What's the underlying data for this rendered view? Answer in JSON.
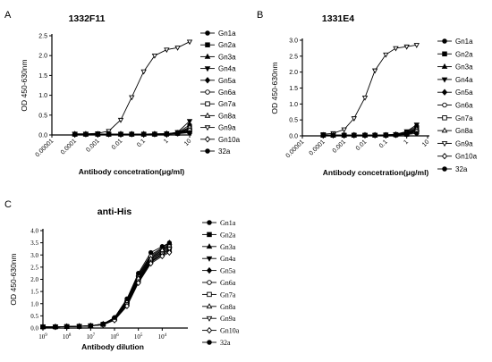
{
  "chart_data": [
    {
      "panel": "A",
      "type": "line",
      "title": "1332F11",
      "xlabel": "Antibody concetration(μg/ml)",
      "ylabel": "OD 450-630nm",
      "x_scale": "log",
      "xlim": [
        1e-05,
        10
      ],
      "x_ticks": [
        "0.00001",
        "0.0001",
        "0.001",
        "0.01",
        "0.1",
        "1",
        "10"
      ],
      "ylim": [
        0,
        2.5
      ],
      "y_ticks": [
        "0.0",
        "0.5",
        "1.0",
        "1.5",
        "2.0",
        "2.5"
      ],
      "legend_position": "right",
      "x": [
        0.0001,
        0.0003,
        0.001,
        0.003,
        0.01,
        0.03,
        0.1,
        0.3,
        1,
        3,
        10
      ],
      "series": [
        {
          "name": "Gn1a",
          "marker": "circle",
          "values": [
            0.02,
            0.02,
            0.02,
            0.02,
            0.02,
            0.02,
            0.02,
            0.03,
            0.03,
            0.06,
            0.25
          ]
        },
        {
          "name": "Gn2a",
          "marker": "square",
          "values": [
            0.02,
            0.02,
            0.02,
            0.02,
            0.02,
            0.02,
            0.02,
            0.02,
            0.03,
            0.05,
            0.18
          ]
        },
        {
          "name": "Gn3a",
          "marker": "triangle-up",
          "values": [
            0.02,
            0.02,
            0.02,
            0.02,
            0.02,
            0.02,
            0.02,
            0.02,
            0.03,
            0.05,
            0.12
          ]
        },
        {
          "name": "Gn4a",
          "marker": "triangle-down",
          "values": [
            0.02,
            0.02,
            0.02,
            0.02,
            0.02,
            0.02,
            0.02,
            0.03,
            0.03,
            0.07,
            0.35
          ]
        },
        {
          "name": "Gn5a",
          "marker": "diamond",
          "values": [
            0.02,
            0.02,
            0.02,
            0.02,
            0.02,
            0.02,
            0.02,
            0.02,
            0.02,
            0.04,
            0.1
          ]
        },
        {
          "name": "Gn6a",
          "marker": "circle-open",
          "values": [
            0.02,
            0.02,
            0.02,
            0.02,
            0.02,
            0.02,
            0.02,
            0.02,
            0.03,
            0.05,
            0.15
          ]
        },
        {
          "name": "Gn7a",
          "marker": "square-open",
          "values": [
            0.02,
            0.02,
            0.02,
            0.02,
            0.02,
            0.02,
            0.02,
            0.02,
            0.02,
            0.04,
            0.08
          ]
        },
        {
          "name": "Gn8a",
          "marker": "triangle-up-open",
          "values": [
            0.02,
            0.02,
            0.02,
            0.02,
            0.02,
            0.02,
            0.02,
            0.02,
            0.03,
            0.05,
            0.2
          ]
        },
        {
          "name": "Gn9a",
          "marker": "triangle-down-open",
          "values": [
            0.03,
            0.03,
            0.04,
            0.1,
            0.38,
            0.95,
            1.6,
            2.0,
            2.15,
            2.2,
            2.35
          ]
        },
        {
          "name": "Gn10a",
          "marker": "diamond-open",
          "values": [
            0.02,
            0.02,
            0.02,
            0.02,
            0.02,
            0.02,
            0.02,
            0.02,
            0.03,
            0.04,
            0.12
          ]
        },
        {
          "name": "32a",
          "marker": "circle",
          "values": [
            0.02,
            0.02,
            0.02,
            0.02,
            0.02,
            0.02,
            0.02,
            0.02,
            0.02,
            0.03,
            0.06
          ]
        }
      ]
    },
    {
      "panel": "B",
      "type": "line",
      "title": "1331E4",
      "xlabel": "Antibody concetration(μg/ml)",
      "ylabel": "OD 450-630nm",
      "x_scale": "log",
      "xlim": [
        1e-05,
        10
      ],
      "x_ticks": [
        "0.00001",
        "0.0001",
        "0.001",
        "0.01",
        "0.1",
        "1",
        "10"
      ],
      "ylim": [
        0,
        3.0
      ],
      "y_ticks": [
        "0.0",
        "0.5",
        "1.0",
        "1.5",
        "2.0",
        "2.5",
        "3.0"
      ],
      "legend_position": "right",
      "x": [
        0.0001,
        0.0003,
        0.001,
        0.003,
        0.01,
        0.03,
        0.1,
        0.3,
        1,
        3
      ],
      "series": [
        {
          "name": "Gn1a",
          "marker": "circle",
          "values": [
            0.02,
            0.02,
            0.02,
            0.02,
            0.02,
            0.02,
            0.03,
            0.05,
            0.12,
            0.3
          ]
        },
        {
          "name": "Gn2a",
          "marker": "square",
          "values": [
            0.02,
            0.02,
            0.02,
            0.02,
            0.02,
            0.02,
            0.03,
            0.04,
            0.1,
            0.25
          ]
        },
        {
          "name": "Gn3a",
          "marker": "triangle-up",
          "values": [
            0.02,
            0.02,
            0.02,
            0.02,
            0.02,
            0.02,
            0.02,
            0.04,
            0.08,
            0.2
          ]
        },
        {
          "name": "Gn4a",
          "marker": "triangle-down",
          "values": [
            0.02,
            0.02,
            0.02,
            0.02,
            0.02,
            0.02,
            0.03,
            0.05,
            0.14,
            0.35
          ]
        },
        {
          "name": "Gn5a",
          "marker": "diamond",
          "values": [
            0.02,
            0.02,
            0.02,
            0.02,
            0.02,
            0.02,
            0.02,
            0.03,
            0.06,
            0.15
          ]
        },
        {
          "name": "Gn6a",
          "marker": "circle-open",
          "values": [
            0.02,
            0.02,
            0.02,
            0.02,
            0.02,
            0.02,
            0.02,
            0.03,
            0.07,
            0.18
          ]
        },
        {
          "name": "Gn7a",
          "marker": "square-open",
          "values": [
            0.02,
            0.02,
            0.02,
            0.02,
            0.02,
            0.02,
            0.02,
            0.03,
            0.05,
            0.12
          ]
        },
        {
          "name": "Gn8a",
          "marker": "triangle-up-open",
          "values": [
            0.02,
            0.02,
            0.02,
            0.02,
            0.02,
            0.02,
            0.02,
            0.04,
            0.09,
            0.22
          ]
        },
        {
          "name": "Gn9a",
          "marker": "triangle-down-open",
          "values": [
            0.05,
            0.08,
            0.2,
            0.55,
            1.2,
            2.05,
            2.55,
            2.75,
            2.8,
            2.85
          ]
        },
        {
          "name": "Gn10a",
          "marker": "diamond-open",
          "values": [
            0.02,
            0.02,
            0.02,
            0.02,
            0.02,
            0.02,
            0.02,
            0.03,
            0.06,
            0.14
          ]
        },
        {
          "name": "32a",
          "marker": "circle",
          "values": [
            0.02,
            0.02,
            0.02,
            0.02,
            0.02,
            0.02,
            0.02,
            0.02,
            0.04,
            0.08
          ]
        }
      ]
    },
    {
      "panel": "C",
      "type": "line",
      "title": "anti-His",
      "xlabel": "Antibody dilution",
      "ylabel": "OD 450-630nm",
      "x_scale": "log",
      "xlim": [
        1000000000,
        1000
      ],
      "x_reversed": true,
      "x_tick_values": [
        1000000000,
        100000000,
        10000000,
        1000000,
        100000,
        10000
      ],
      "x_tick_bases": [
        "10",
        "10",
        "10",
        "10",
        "10",
        "10"
      ],
      "x_tick_exps": [
        "9",
        "8",
        "7",
        "6",
        "5",
        "4"
      ],
      "ylim": [
        0,
        4.0
      ],
      "y_ticks": [
        "0.0",
        "0.5",
        "1.0",
        "1.5",
        "2.0",
        "2.5",
        "3.0",
        "3.5",
        "4.0"
      ],
      "legend_position": "right",
      "x": [
        1000000000,
        300000000,
        100000000,
        30000000,
        10000000,
        3000000,
        1000000,
        300000,
        100000,
        30000,
        10000,
        5000
      ],
      "series": [
        {
          "name": "Gn1a",
          "marker": "circle",
          "values": [
            0.05,
            0.05,
            0.06,
            0.07,
            0.09,
            0.16,
            0.4,
            1.1,
            2.1,
            2.9,
            3.2,
            3.4
          ]
        },
        {
          "name": "Gn2a",
          "marker": "square",
          "values": [
            0.05,
            0.05,
            0.06,
            0.07,
            0.09,
            0.15,
            0.38,
            1.05,
            2.0,
            2.8,
            3.1,
            3.3
          ]
        },
        {
          "name": "Gn3a",
          "marker": "triangle-up",
          "values": [
            0.05,
            0.05,
            0.06,
            0.07,
            0.09,
            0.17,
            0.42,
            1.15,
            2.2,
            3.0,
            3.3,
            3.5
          ]
        },
        {
          "name": "Gn4a",
          "marker": "triangle-down",
          "values": [
            0.05,
            0.05,
            0.06,
            0.07,
            0.09,
            0.15,
            0.36,
            1.0,
            1.95,
            2.75,
            3.05,
            3.2
          ]
        },
        {
          "name": "Gn5a",
          "marker": "diamond",
          "values": [
            0.05,
            0.05,
            0.06,
            0.07,
            0.09,
            0.14,
            0.34,
            0.95,
            1.9,
            2.7,
            3.0,
            3.15
          ]
        },
        {
          "name": "Gn6a",
          "marker": "circle-open",
          "values": [
            0.05,
            0.05,
            0.06,
            0.07,
            0.09,
            0.16,
            0.4,
            1.12,
            2.15,
            2.95,
            3.25,
            3.45
          ]
        },
        {
          "name": "Gn7a",
          "marker": "square-open",
          "values": [
            0.05,
            0.05,
            0.06,
            0.07,
            0.09,
            0.15,
            0.37,
            1.02,
            2.0,
            2.8,
            3.15,
            3.35
          ]
        },
        {
          "name": "Gn8a",
          "marker": "triangle-up-open",
          "values": [
            0.05,
            0.05,
            0.06,
            0.07,
            0.09,
            0.16,
            0.39,
            1.08,
            2.05,
            2.85,
            3.2,
            3.4
          ]
        },
        {
          "name": "Gn9a",
          "marker": "triangle-down-open",
          "values": [
            0.05,
            0.05,
            0.06,
            0.07,
            0.09,
            0.14,
            0.35,
            0.98,
            1.92,
            2.72,
            3.05,
            3.25
          ]
        },
        {
          "name": "Gn10a",
          "marker": "diamond-open",
          "values": [
            0.05,
            0.05,
            0.06,
            0.07,
            0.09,
            0.13,
            0.32,
            0.9,
            1.85,
            2.65,
            2.95,
            3.1
          ]
        },
        {
          "name": "32a",
          "marker": "circle",
          "values": [
            0.05,
            0.05,
            0.06,
            0.07,
            0.09,
            0.17,
            0.43,
            1.2,
            2.25,
            3.1,
            3.35,
            3.5
          ]
        }
      ]
    }
  ]
}
